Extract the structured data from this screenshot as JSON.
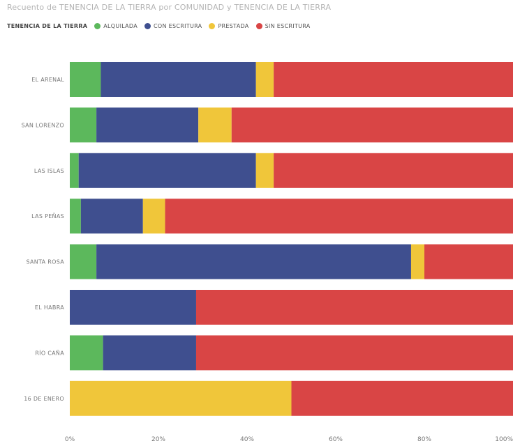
{
  "chart_data": {
    "type": "bar",
    "orientation": "horizontal",
    "stacked": true,
    "normalized": true,
    "title": "Recuento de TENENCIA DE LA TIERRA por COMUNIDAD y TENENCIA DE LA TIERRA",
    "legend_title": "TENENCIA DE LA TIERRA",
    "legend_position": "top-left",
    "categories": [
      "EL ARENAL",
      "SAN LORENZO",
      "LAS ISLAS",
      "LAS PEÑAS",
      "SANTA ROSA",
      "EL HABRA",
      "RÍO CAÑA",
      "16 DE ENERO"
    ],
    "series": [
      {
        "name": "ALQUILADA",
        "color": "#5cb85c",
        "values": [
          7,
          6,
          2,
          2.5,
          6,
          0,
          7.5,
          0
        ]
      },
      {
        "name": "CON ESCRITURA",
        "color": "#3f4f8f",
        "values": [
          35,
          23,
          40,
          14,
          71,
          28.5,
          21,
          0
        ]
      },
      {
        "name": "PRESTADA",
        "color": "#f0c63a",
        "values": [
          4,
          7.5,
          4,
          5,
          3,
          0,
          0,
          50
        ]
      },
      {
        "name": "SIN ESCRITURA",
        "color": "#d94545",
        "values": [
          54,
          63.5,
          54,
          78.5,
          20,
          71.5,
          71.5,
          50
        ]
      }
    ],
    "xlim": [
      0,
      100
    ],
    "x_ticks": [
      "0%",
      "20%",
      "40%",
      "60%",
      "80%",
      "100%"
    ],
    "grid": false
  }
}
